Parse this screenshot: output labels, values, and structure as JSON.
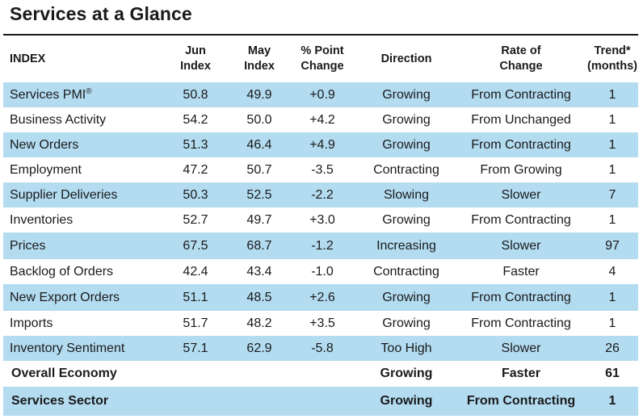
{
  "title": "Services at a Glance",
  "headers": {
    "index": "INDEX",
    "jun_line1": "Jun",
    "jun_line2": "Index",
    "may_line1": "May",
    "may_line2": "Index",
    "chg_line1": "% Point",
    "chg_line2": "Change",
    "direction": "Direction",
    "rate_line1": "Rate of",
    "rate_line2": "Change",
    "trend_line1": "Trend*",
    "trend_line2": "(months)"
  },
  "rows": [
    {
      "name": "Services PMI",
      "sup": "®",
      "jun": "50.8",
      "may": "49.9",
      "change": "+0.9",
      "direction": "Growing",
      "rate": "From Contracting",
      "trend": "1"
    },
    {
      "name": "Business Activity",
      "jun": "54.2",
      "may": "50.0",
      "change": "+4.2",
      "direction": "Growing",
      "rate": "From Unchanged",
      "trend": "1"
    },
    {
      "name": "New Orders",
      "jun": "51.3",
      "may": "46.4",
      "change": "+4.9",
      "direction": "Growing",
      "rate": "From Contracting",
      "trend": "1"
    },
    {
      "name": "Employment",
      "jun": "47.2",
      "may": "50.7",
      "change": "-3.5",
      "direction": "Contracting",
      "rate": "From Growing",
      "trend": "1"
    },
    {
      "name": "Supplier Deliveries",
      "jun": "50.3",
      "may": "52.5",
      "change": "-2.2",
      "direction": "Slowing",
      "rate": "Slower",
      "trend": "7"
    },
    {
      "name": "Inventories",
      "jun": "52.7",
      "may": "49.7",
      "change": "+3.0",
      "direction": "Growing",
      "rate": "From Contracting",
      "trend": "1"
    },
    {
      "name": "Prices",
      "jun": "67.5",
      "may": "68.7",
      "change": "-1.2",
      "direction": "Increasing",
      "rate": "Slower",
      "trend": "97"
    },
    {
      "name": "Backlog of Orders",
      "jun": "42.4",
      "may": "43.4",
      "change": "-1.0",
      "direction": "Contracting",
      "rate": "Faster",
      "trend": "4"
    },
    {
      "name": "New Export Orders",
      "jun": "51.1",
      "may": "48.5",
      "change": "+2.6",
      "direction": "Growing",
      "rate": "From Contracting",
      "trend": "1"
    },
    {
      "name": "Imports",
      "jun": "51.7",
      "may": "48.2",
      "change": "+3.5",
      "direction": "Growing",
      "rate": "From Contracting",
      "trend": "1"
    },
    {
      "name": "Inventory Sentiment",
      "jun": "57.1",
      "may": "62.9",
      "change": "-5.8",
      "direction": "Too High",
      "rate": "Slower",
      "trend": "26"
    }
  ],
  "totals": [
    {
      "name": "Overall Economy",
      "direction": "Growing",
      "rate": "Faster",
      "trend": "61"
    },
    {
      "name": "Services Sector",
      "direction": "Growing",
      "rate": "From Contracting",
      "trend": "1"
    }
  ],
  "colors": {
    "row_shade": "#b3dcf1",
    "text": "#1a1a1a"
  }
}
